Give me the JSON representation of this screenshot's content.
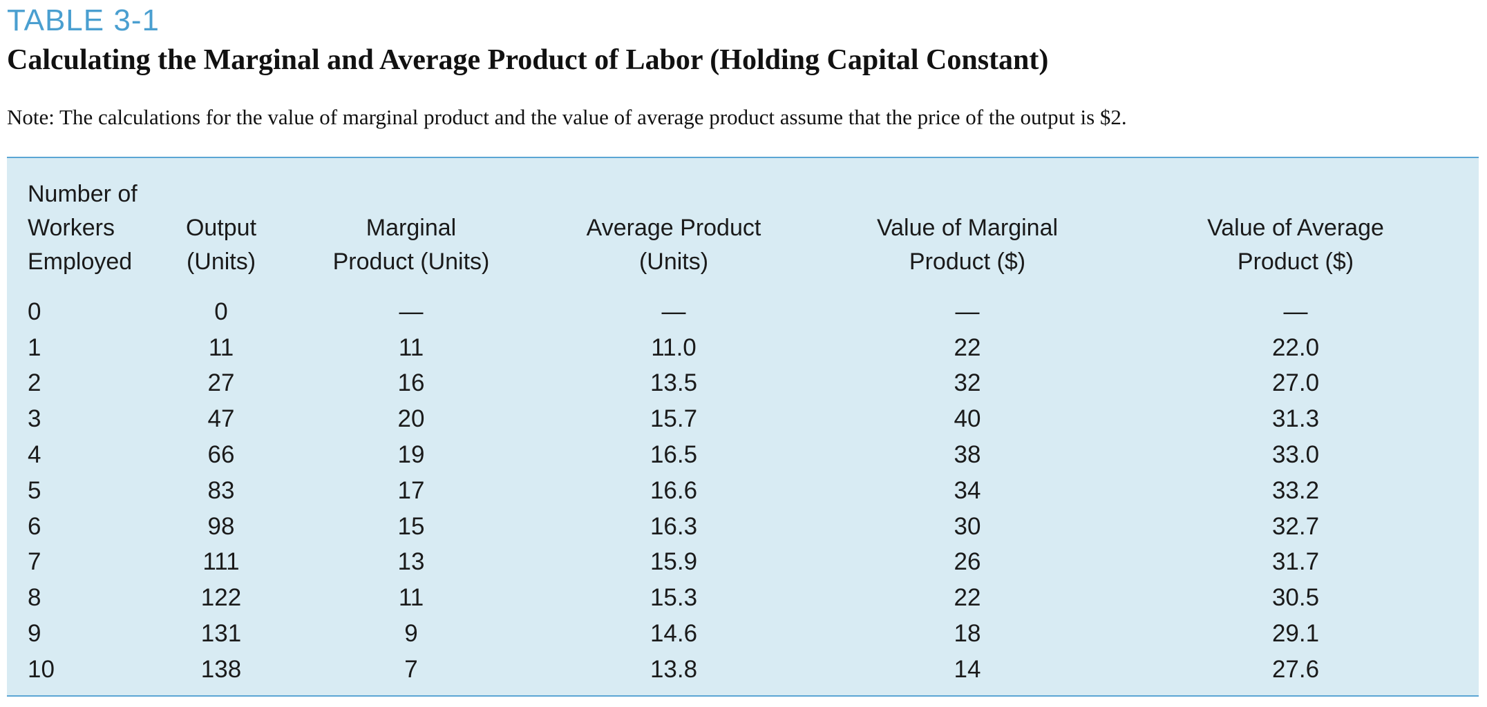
{
  "table_label": "TABLE 3-1",
  "title": "Calculating the Marginal and Average Product of Labor (Holding Capital Constant)",
  "note": "Note: The calculations for the value of marginal product and the value of average product assume that the price of the output is $2.",
  "columns": [
    {
      "lines": [
        "Number of",
        "Workers",
        "Employed"
      ]
    },
    {
      "lines": [
        "Output",
        "(Units)"
      ]
    },
    {
      "lines": [
        "Marginal",
        "Product (Units)"
      ]
    },
    {
      "lines": [
        "Average Product",
        "(Units)"
      ]
    },
    {
      "lines": [
        "Value of Marginal",
        "Product ($)"
      ]
    },
    {
      "lines": [
        "Value of Average",
        "Product ($)"
      ]
    }
  ],
  "rows": [
    [
      "0",
      "0",
      "—",
      "—",
      "—",
      "—"
    ],
    [
      "1",
      "11",
      "11",
      "11.0",
      "22",
      "22.0"
    ],
    [
      "2",
      "27",
      "16",
      "13.5",
      "32",
      "27.0"
    ],
    [
      "3",
      "47",
      "20",
      "15.7",
      "40",
      "31.3"
    ],
    [
      "4",
      "66",
      "19",
      "16.5",
      "38",
      "33.0"
    ],
    [
      "5",
      "83",
      "17",
      "16.6",
      "34",
      "33.2"
    ],
    [
      "6",
      "98",
      "15",
      "16.3",
      "30",
      "32.7"
    ],
    [
      "7",
      "111",
      "13",
      "15.9",
      "26",
      "31.7"
    ],
    [
      "8",
      "122",
      "11",
      "15.3",
      "22",
      "30.5"
    ],
    [
      "9",
      "131",
      "9",
      "14.6",
      "18",
      "29.1"
    ],
    [
      "10",
      "138",
      "7",
      "13.8",
      "14",
      "27.6"
    ]
  ],
  "colors": {
    "label_blue": "#4a9fd0",
    "panel_background": "#d8ebf3",
    "rule_blue": "#5aa5d4",
    "text": "#111111"
  }
}
